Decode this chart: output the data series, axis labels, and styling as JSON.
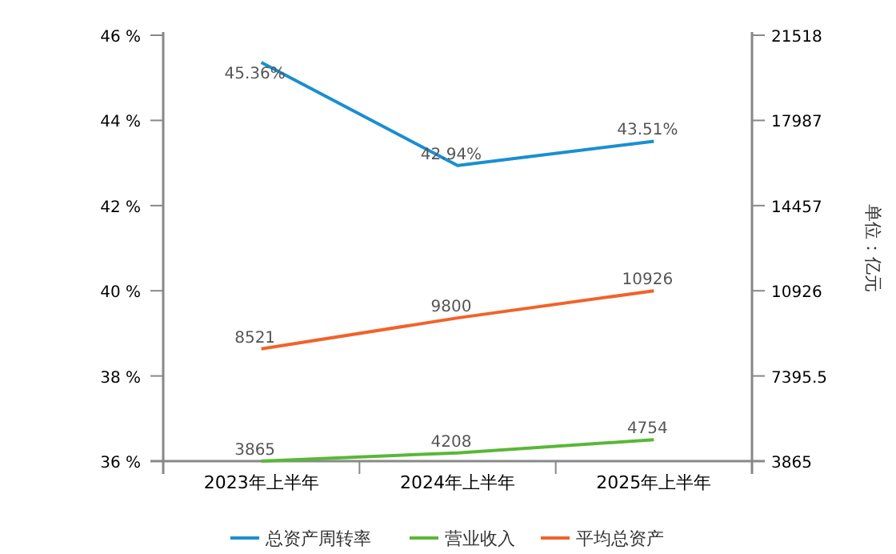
{
  "chart_data": {
    "type": "line",
    "categories": [
      "2023年上半年",
      "2024年上半年",
      "2025年上半年"
    ],
    "y2label": "单位：亿元",
    "series": [
      {
        "name": "总资产周转率",
        "color": "#1a8fd0",
        "values": [
          45.36,
          42.94,
          43.51
        ],
        "value_labels": [
          "45.36%",
          "42.94%",
          "43.51%"
        ]
      },
      {
        "name": "营业收入",
        "color": "#5ab738",
        "values": [
          3865,
          4208,
          4754
        ],
        "axis": "y2",
        "value_labels": [
          "3865",
          "4208",
          "4754"
        ]
      },
      {
        "name": "平均总资产",
        "color": "#f2622a",
        "values": [
          8521,
          9800,
          10926
        ],
        "axis": "y2",
        "value_labels": [
          "8521",
          "9800",
          "10926"
        ]
      }
    ],
    "ylim": [
      36,
      46
    ],
    "yticks": [
      {
        "value": 36,
        "label": "36 %"
      },
      {
        "value": 38,
        "label": "38 %"
      },
      {
        "value": 40,
        "label": "40 %"
      },
      {
        "value": 42,
        "label": "42 %"
      },
      {
        "value": 44,
        "label": "44 %"
      },
      {
        "value": 46,
        "label": "46 %"
      }
    ],
    "y2lim": [
      3865,
      21518
    ],
    "y2ticks": [
      3865,
      7395.5,
      10926,
      14457,
      17987,
      21518
    ],
    "legend": "bottom",
    "grid": false
  }
}
